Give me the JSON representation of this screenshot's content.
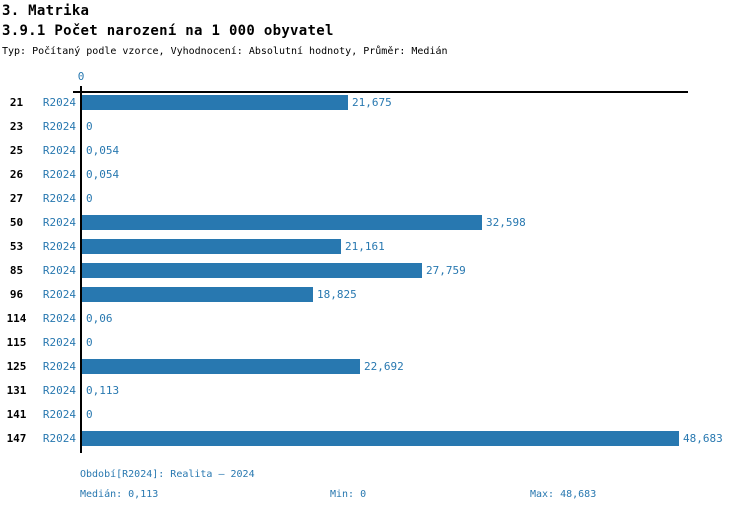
{
  "header": {
    "title": "3. Matrika",
    "subtitle": "3.9.1 Počet narození na 1 000 obyvatel",
    "meta": "Typ: Počítaný podle vzorce, Vyhodnocení: Absolutní hodnoty, Průměr: Medián"
  },
  "chart_data": {
    "type": "bar",
    "orientation": "horizontal",
    "title": "3.9.1 Počet narození na 1 000 obyvatel",
    "axis_zero_label": "0",
    "series_label": "R2024",
    "categories": [
      "21",
      "23",
      "25",
      "26",
      "27",
      "50",
      "53",
      "85",
      "96",
      "114",
      "115",
      "125",
      "131",
      "141",
      "147"
    ],
    "values": [
      21.675,
      0,
      0.054,
      0.054,
      0,
      32.598,
      21.161,
      27.759,
      18.825,
      0.06,
      0,
      22.692,
      0.113,
      0,
      48.683
    ],
    "value_labels": [
      "21,675",
      "0",
      "0,054",
      "0,054",
      "0",
      "32,598",
      "21,161",
      "27,759",
      "18,825",
      "0,06",
      "0",
      "22,692",
      "0,113",
      "0",
      "48,683"
    ],
    "xlim": [
      0,
      49.4
    ],
    "grid": false,
    "legend": false,
    "bar_color": "#2878b0",
    "axis_color": "#000000",
    "stats": {
      "median": 0.113,
      "min": 0,
      "max": 48.683
    }
  },
  "footer": {
    "period": "Období[R2024]: Realita – 2024",
    "median_label": "Medián: 0,113",
    "min_label": "Min: 0",
    "max_label": "Max: 48,683"
  },
  "colors": {
    "accent": "#2878b0",
    "text": "#000000",
    "background": "#ffffff"
  }
}
